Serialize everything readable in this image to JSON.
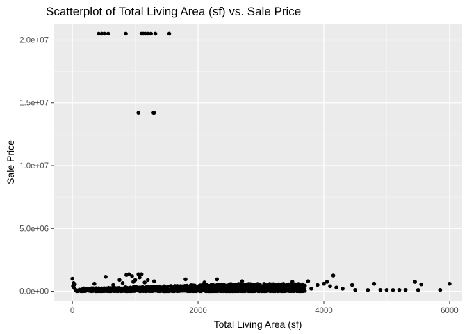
{
  "chart_data": {
    "type": "scatter",
    "title": "Scatterplot of Total Living Area (sf) vs. Sale Price",
    "xlabel": "Total Living Area (sf)",
    "ylabel": "Sale Price",
    "xlim": [
      -300,
      6200
    ],
    "ylim": [
      -800000,
      21300000
    ],
    "x_ticks": [
      0,
      2000,
      4000,
      6000
    ],
    "x_tick_labels": [
      "0",
      "2000",
      "4000",
      "6000"
    ],
    "y_ticks": [
      0,
      5000000,
      10000000,
      15000000,
      20000000
    ],
    "y_tick_labels": [
      "0.0e+00",
      "5.0e+06",
      "1.0e+07",
      "1.5e+07",
      "2.0e+07"
    ],
    "grid": true,
    "legend": "none",
    "colors": {
      "panel_background": "#ebebeb",
      "grid_major": "#ffffff",
      "point": "#000000",
      "tick": "#333333"
    },
    "points": [
      [
        420,
        20500000
      ],
      [
        470,
        20500000
      ],
      [
        510,
        20500000
      ],
      [
        570,
        20500000
      ],
      [
        850,
        20500000
      ],
      [
        1100,
        20500000
      ],
      [
        1130,
        20500000
      ],
      [
        1160,
        20500000
      ],
      [
        1200,
        20500000
      ],
      [
        1250,
        20500000
      ],
      [
        1320,
        20500000
      ],
      [
        1540,
        20500000
      ],
      [
        1050,
        14200000
      ],
      [
        1290,
        14200000
      ],
      [
        1300,
        14200000
      ],
      [
        0,
        1000000
      ],
      [
        20,
        650000
      ],
      [
        40,
        550000
      ],
      [
        10,
        400000
      ],
      [
        30,
        250000
      ],
      [
        50,
        120000
      ],
      [
        180,
        230000
      ],
      [
        200,
        130000
      ],
      [
        210,
        50000
      ],
      [
        350,
        600000
      ],
      [
        380,
        240000
      ],
      [
        530,
        1150000
      ],
      [
        490,
        200000
      ],
      [
        650,
        500000
      ],
      [
        750,
        900000
      ],
      [
        800,
        650000
      ],
      [
        860,
        1300000
      ],
      [
        900,
        1350000
      ],
      [
        950,
        1200000
      ],
      [
        970,
        750000
      ],
      [
        1000,
        900000
      ],
      [
        1050,
        1350000
      ],
      [
        1070,
        1100000
      ],
      [
        1100,
        1350000
      ],
      [
        1150,
        700000
      ],
      [
        1200,
        900000
      ],
      [
        1300,
        800000
      ],
      [
        1800,
        950000
      ],
      [
        2100,
        700000
      ],
      [
        2300,
        950000
      ],
      [
        2700,
        800000
      ],
      [
        3500,
        750000
      ],
      [
        3750,
        800000
      ],
      [
        4150,
        1250000
      ],
      [
        4050,
        750000
      ],
      [
        4000,
        600000
      ],
      [
        3900,
        500000
      ],
      [
        4100,
        400000
      ],
      [
        4450,
        500000
      ],
      [
        4500,
        100000
      ],
      [
        4700,
        100000
      ],
      [
        4800,
        600000
      ],
      [
        4900,
        100000
      ],
      [
        5000,
        100000
      ],
      [
        5100,
        100000
      ],
      [
        5200,
        100000
      ],
      [
        5300,
        100000
      ],
      [
        5450,
        750000
      ],
      [
        5500,
        100000
      ],
      [
        5550,
        550000
      ],
      [
        5850,
        100000
      ],
      [
        6000,
        600000
      ],
      [
        3600,
        300000
      ],
      [
        3700,
        450000
      ],
      [
        3800,
        200000
      ],
      [
        4200,
        300000
      ],
      [
        4300,
        200000
      ]
    ],
    "dense_band": {
      "note": "main cluster of sales",
      "x_range": [
        50,
        3700
      ],
      "y_range": [
        0,
        600000
      ],
      "count": 1400
    }
  }
}
